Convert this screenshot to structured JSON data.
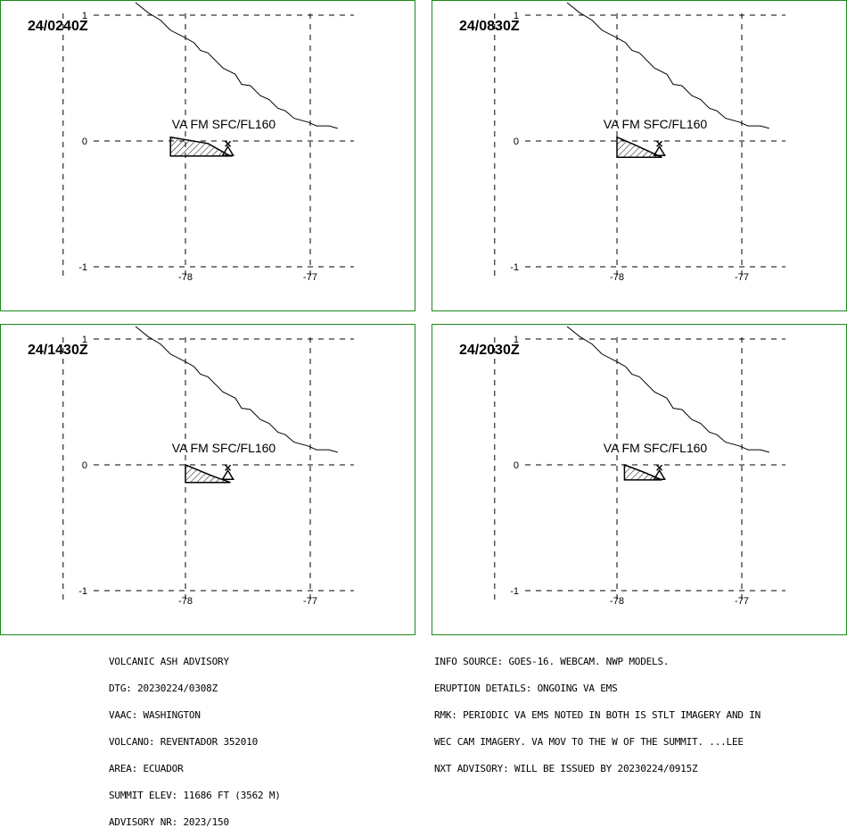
{
  "panels": [
    {
      "time": "24/0240Z",
      "ash_label": "VA FM SFC/FL160",
      "ash_polygon": [
        [
          -78.12,
          0.03
        ],
        [
          -78.12,
          -0.12
        ],
        [
          -77.64,
          -0.12
        ],
        [
          -77.82,
          -0.02
        ]
      ]
    },
    {
      "time": "24/0830Z",
      "ash_label": "VA FM SFC/FL160",
      "ash_polygon": [
        [
          -78.0,
          0.03
        ],
        [
          -78.0,
          -0.13
        ],
        [
          -77.64,
          -0.13
        ],
        [
          -77.86,
          -0.03
        ]
      ]
    },
    {
      "time": "24/1430Z",
      "ash_label": "VA FM SFC/FL160",
      "ash_polygon": [
        [
          -78.0,
          0.0
        ],
        [
          -78.0,
          -0.14
        ],
        [
          -77.64,
          -0.14
        ],
        [
          -77.78,
          -0.09
        ]
      ]
    },
    {
      "time": "24/2030Z",
      "ash_label": "VA FM SFC/FL160",
      "ash_polygon": [
        [
          -77.94,
          0.0
        ],
        [
          -77.94,
          -0.12
        ],
        [
          -77.64,
          -0.12
        ],
        [
          -77.78,
          -0.06
        ]
      ]
    }
  ],
  "axes": {
    "lat_ticks": [
      1,
      0,
      -1
    ],
    "lat_tick_labels": [
      "1",
      "0",
      "-1"
    ],
    "lon_ticks": [
      -78,
      -77
    ],
    "lon_tick_labels": [
      "-78",
      "-77"
    ]
  },
  "coastline": [
    [
      -78.4,
      1.1
    ],
    [
      -78.3,
      1.02
    ],
    [
      -78.2,
      0.96
    ],
    [
      -78.12,
      0.88
    ],
    [
      -78.0,
      0.82
    ],
    [
      -77.93,
      0.78
    ],
    [
      -77.88,
      0.72
    ],
    [
      -77.82,
      0.7
    ],
    [
      -77.7,
      0.58
    ],
    [
      -77.6,
      0.53
    ],
    [
      -77.55,
      0.45
    ],
    [
      -77.48,
      0.44
    ],
    [
      -77.4,
      0.36
    ],
    [
      -77.33,
      0.33
    ],
    [
      -77.26,
      0.26
    ],
    [
      -77.2,
      0.24
    ],
    [
      -77.13,
      0.18
    ],
    [
      -77.02,
      0.15
    ],
    [
      -76.95,
      0.12
    ],
    [
      -76.85,
      0.12
    ],
    [
      -76.78,
      0.1
    ]
  ],
  "volcano": {
    "lon": -77.66,
    "lat": -0.08
  },
  "advisory_left": [
    "VOLCANIC ASH ADVISORY",
    "DTG: 20230224/0308Z",
    "VAAC: WASHINGTON",
    "VOLCANO: REVENTADOR 352010",
    "AREA: ECUADOR",
    "SUMMIT ELEV: 11686 FT (3562 M)",
    "ADVISORY NR: 2023/150"
  ],
  "advisory_right": [
    "INFO SOURCE: GOES-16. WEBCAM. NWP MODELS.",
    "ERUPTION DETAILS: ONGOING VA EMS",
    "RMK: PERIODIC VA EMS NOTED IN BOTH IS STLT IMAGERY AND IN",
    "WEC CAM IMAGERY. VA MOV TO THE W OF THE SUMMIT. ...LEE",
    "NXT ADVISORY: WILL BE ISSUED BY 20230224/0915Z"
  ],
  "colors": {
    "frame": "#1a8a1a",
    "line": "#000000"
  }
}
